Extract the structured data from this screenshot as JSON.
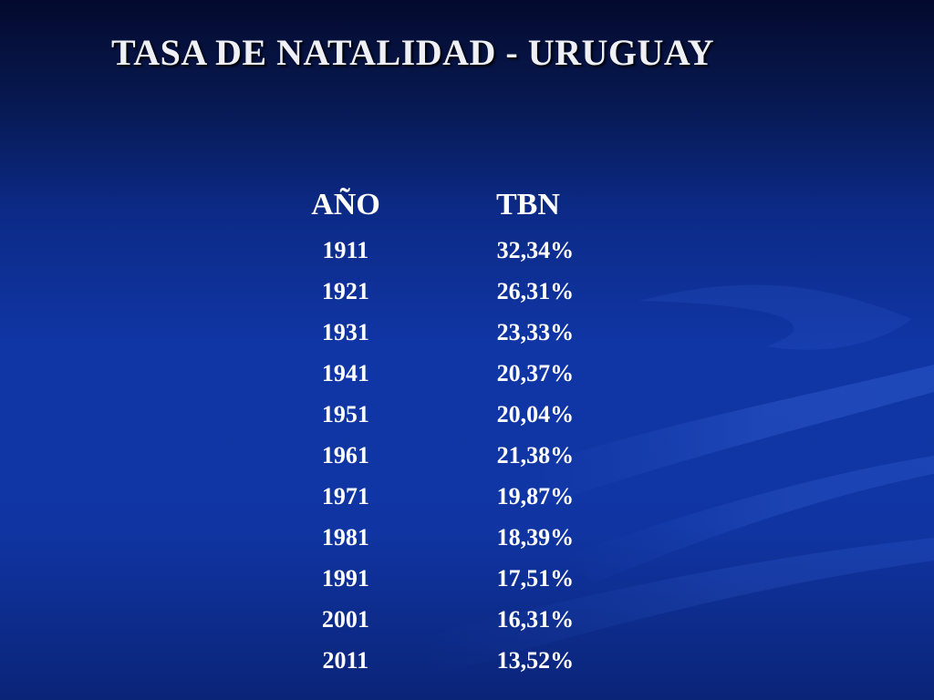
{
  "title": "TASA DE NATALIDAD - URUGUAY",
  "table": {
    "headers": [
      "AÑO",
      "TBN"
    ],
    "rows": [
      [
        "1911",
        "32,34%"
      ],
      [
        "1921",
        "26,31%"
      ],
      [
        "1931",
        "23,33%"
      ],
      [
        "1941",
        "20,37%"
      ],
      [
        "1951",
        "20,04%"
      ],
      [
        "1961",
        "21,38%"
      ],
      [
        "1971",
        "19,87%"
      ],
      [
        "1981",
        "18,39%"
      ],
      [
        "1991",
        "17,51%"
      ],
      [
        "2001",
        "16,31%"
      ],
      [
        "2011",
        "13,52%"
      ]
    ]
  },
  "colors": {
    "background_top": "#040a2e",
    "background_main": "#1036a6",
    "text": "#ffffff"
  }
}
